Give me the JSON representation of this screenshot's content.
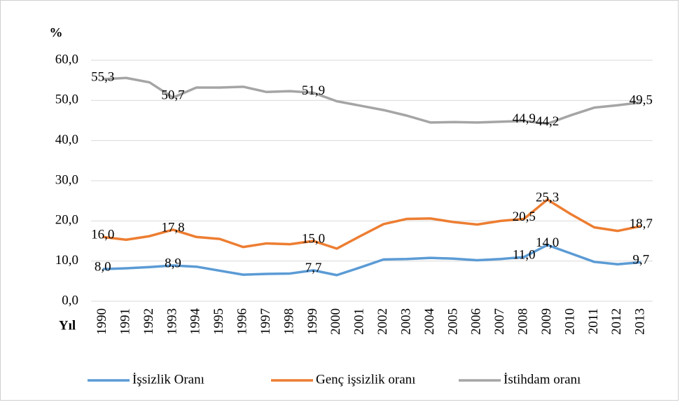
{
  "chart_data": {
    "type": "line",
    "y_label": "%",
    "x_label": "Yıl",
    "categories": [
      "1990",
      "1991",
      "1992",
      "1993",
      "1994",
      "1995",
      "1996",
      "1997",
      "1998",
      "1999",
      "2000",
      "2001",
      "2002",
      "2003",
      "2004",
      "2005",
      "2006",
      "2007",
      "2008",
      "2009",
      "2010",
      "2011",
      "2012",
      "2013"
    ],
    "series": [
      {
        "name": "İşsizlik Oranı",
        "color": "#5b9bd5",
        "values": [
          8.0,
          8.2,
          8.5,
          8.9,
          8.6,
          7.6,
          6.6,
          6.8,
          6.9,
          7.7,
          6.5,
          8.4,
          10.4,
          10.5,
          10.8,
          10.6,
          10.2,
          10.5,
          11.0,
          14.0,
          11.9,
          9.8,
          9.2,
          9.7
        ],
        "value_labels": [
          "8,0",
          null,
          null,
          "8,9",
          null,
          null,
          null,
          null,
          null,
          "7,7",
          null,
          null,
          null,
          null,
          null,
          null,
          null,
          null,
          "11,0",
          "14,0",
          null,
          null,
          null,
          "9,7"
        ]
      },
      {
        "name": "Genç işsizlik oranı",
        "color": "#ed7d31",
        "values": [
          16.0,
          15.3,
          16.2,
          17.8,
          16.0,
          15.5,
          13.5,
          14.4,
          14.2,
          15.0,
          13.1,
          16.2,
          19.2,
          20.5,
          20.6,
          19.7,
          19.1,
          20.0,
          20.5,
          25.3,
          21.7,
          18.4,
          17.5,
          18.7
        ],
        "value_labels": [
          "16,0",
          null,
          null,
          "17,8",
          null,
          null,
          null,
          null,
          null,
          "15,0",
          null,
          null,
          null,
          null,
          null,
          null,
          null,
          null,
          "20,5",
          "25,3",
          null,
          null,
          null,
          "18,7"
        ]
      },
      {
        "name": "İstihdam oranı",
        "color": "#a5a5a5",
        "values": [
          55.3,
          55.6,
          54.5,
          50.7,
          53.2,
          53.2,
          53.4,
          52.1,
          52.3,
          51.9,
          49.8,
          48.7,
          47.6,
          46.2,
          44.5,
          44.6,
          44.5,
          44.7,
          44.9,
          44.2,
          46.3,
          48.2,
          48.8,
          49.5
        ],
        "value_labels": [
          "55,3",
          null,
          null,
          "50,7",
          null,
          null,
          null,
          null,
          null,
          "51,9",
          null,
          null,
          null,
          null,
          null,
          null,
          null,
          null,
          "44,9",
          "44,2",
          null,
          null,
          null,
          "49,5"
        ]
      }
    ],
    "ylim": [
      0,
      60
    ],
    "yticks": [
      {
        "value": 0,
        "label": "0,0"
      },
      {
        "value": 10,
        "label": "10,0"
      },
      {
        "value": 20,
        "label": "20,0"
      },
      {
        "value": 30,
        "label": "30,0"
      },
      {
        "value": 40,
        "label": "40,0"
      },
      {
        "value": 50,
        "label": "50,0"
      },
      {
        "value": 60,
        "label": "60,0"
      }
    ],
    "grid": true,
    "legend": "bottom"
  }
}
